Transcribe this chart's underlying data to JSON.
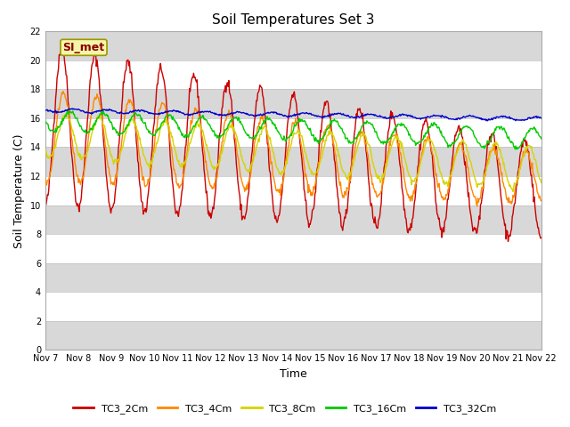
{
  "title": "Soil Temperatures Set 3",
  "xlabel": "Time",
  "ylabel": "Soil Temperature (C)",
  "ylim": [
    0,
    22
  ],
  "yticks": [
    0,
    2,
    4,
    6,
    8,
    10,
    12,
    14,
    16,
    18,
    20,
    22
  ],
  "xtick_labels": [
    "Nov 7",
    "Nov 8",
    "Nov 9",
    "Nov 10",
    "Nov 11",
    "Nov 12",
    "Nov 13",
    "Nov 14",
    "Nov 15",
    "Nov 16",
    "Nov 17",
    "Nov 18",
    "Nov 19",
    "Nov 20",
    "Nov 21",
    "Nov 22"
  ],
  "series_colors": [
    "#cc0000",
    "#ff8800",
    "#d4d400",
    "#00cc00",
    "#0000cc"
  ],
  "series_names": [
    "TC3_2Cm",
    "TC3_4Cm",
    "TC3_8Cm",
    "TC3_16Cm",
    "TC3_32Cm"
  ],
  "annotation_text": "SI_met",
  "bg_color": "#ffffff",
  "band_light": "#e8e8e8",
  "band_dark": "#d0d0d0",
  "title_fontsize": 11,
  "axis_label_fontsize": 9,
  "tick_fontsize": 7,
  "legend_fontsize": 8,
  "line_width": 1.0,
  "n_points": 720
}
